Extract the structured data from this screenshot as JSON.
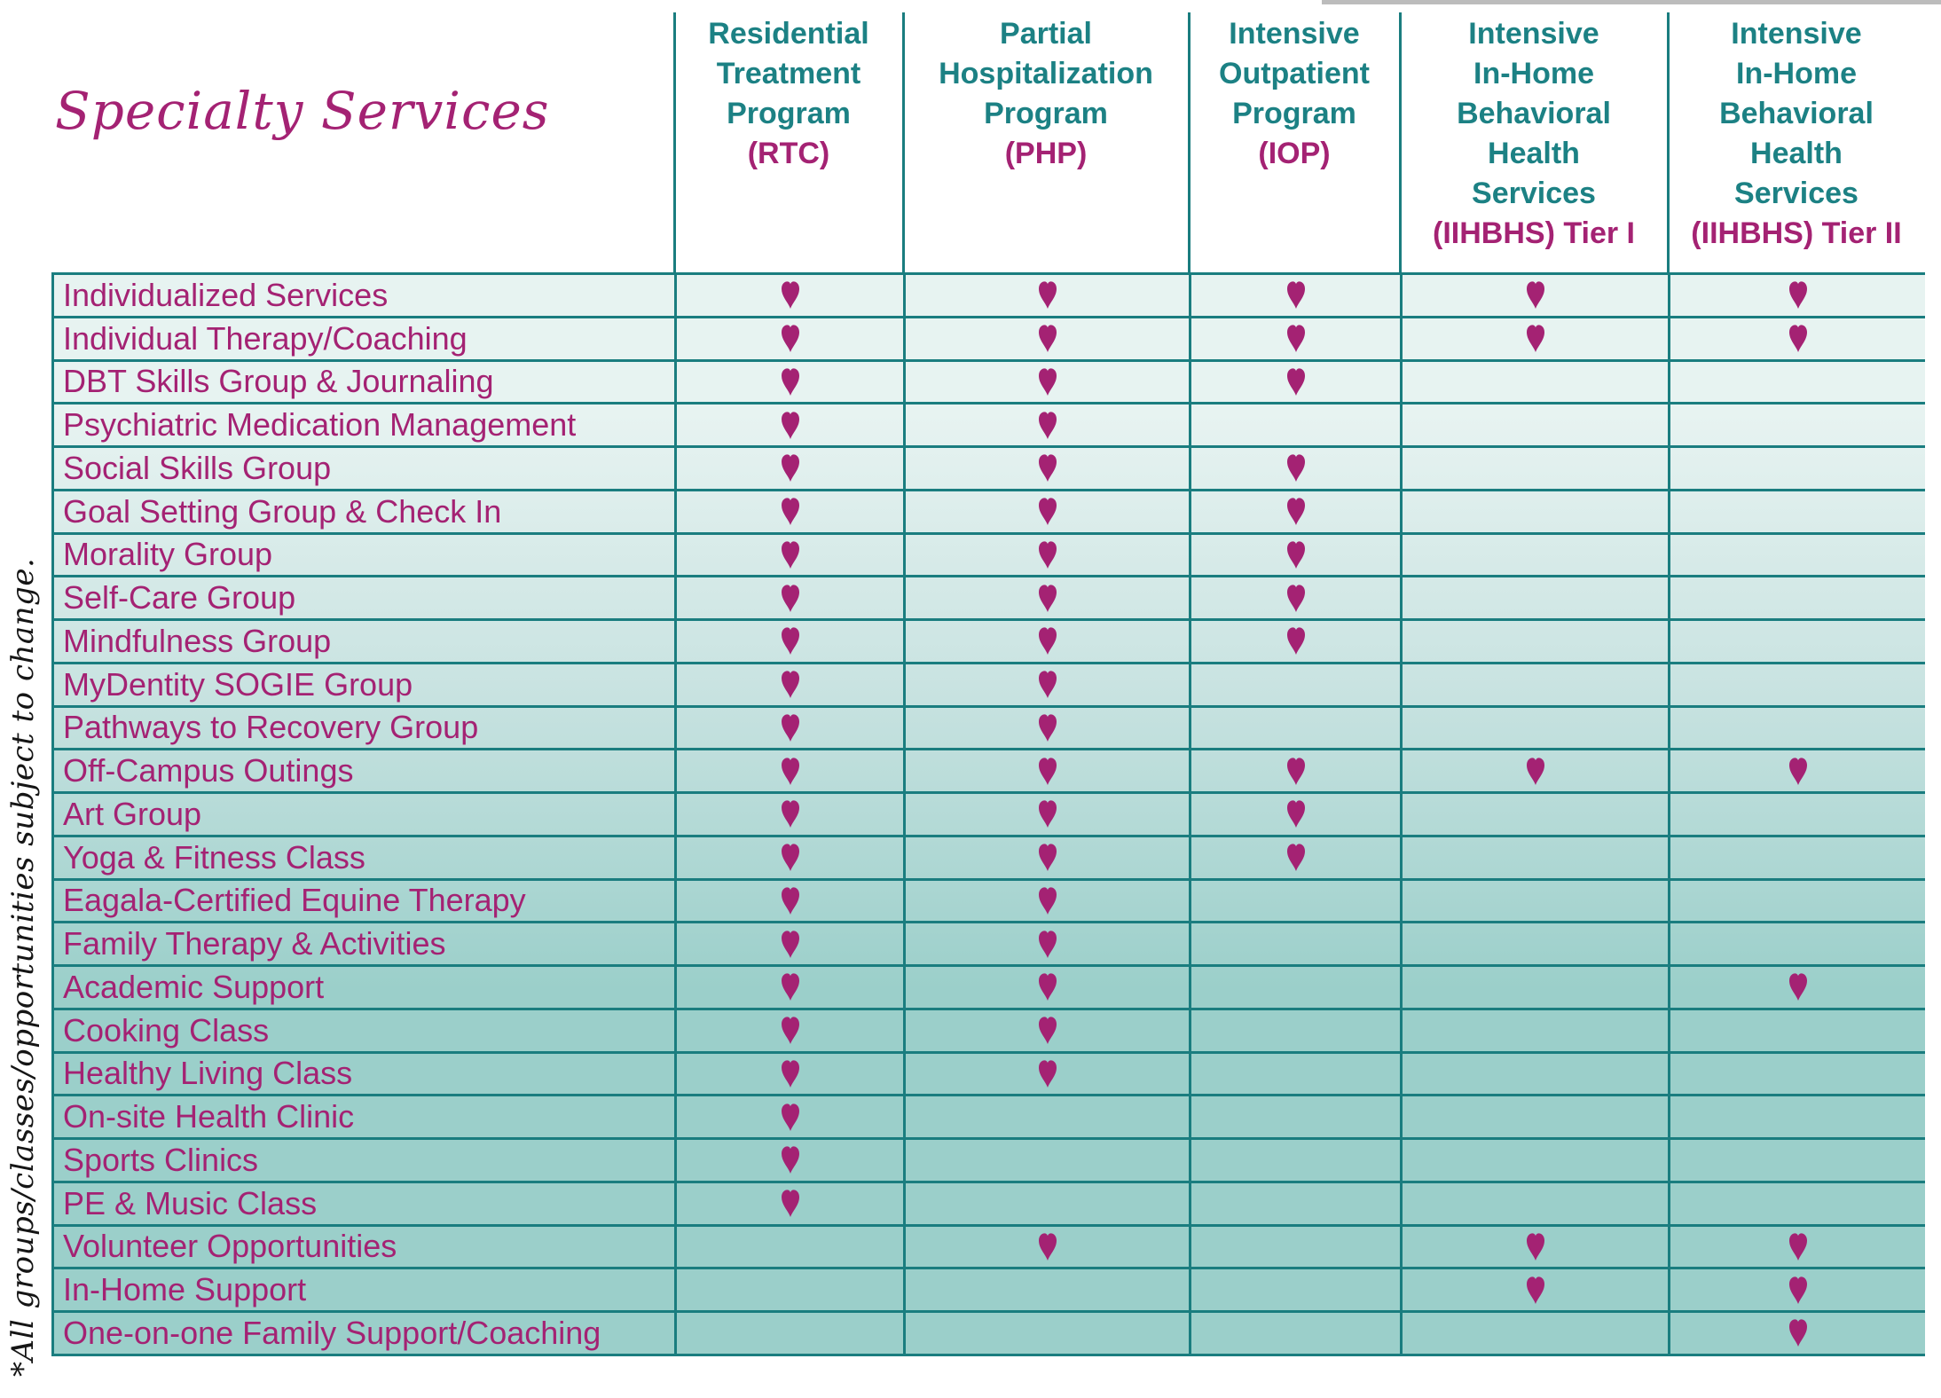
{
  "title": "Specialty Services",
  "footnote": "*All groups/classes/opportunities subject to change.",
  "colors": {
    "teal_text": "#1c8184",
    "grid_line": "#1a7d7f",
    "magenta": "#a42273",
    "row_gradient": [
      "#e7f3f1",
      "#c9e3e1",
      "#9bcfca"
    ]
  },
  "columns": [
    {
      "lines": [
        "Residential",
        "Treatment",
        "Program"
      ],
      "abbr": "(RTC)"
    },
    {
      "lines": [
        "Partial",
        "Hospitalization",
        "Program"
      ],
      "abbr": "(PHP)"
    },
    {
      "lines": [
        "Intensive",
        "Outpatient",
        "Program"
      ],
      "abbr": "(IOP)"
    },
    {
      "lines": [
        "Intensive",
        "In-Home",
        "Behavioral",
        "Health",
        "Services"
      ],
      "abbr": "(IIHBHS) Tier I"
    },
    {
      "lines": [
        "Intensive",
        "In-Home",
        "Behavioral",
        "Health",
        "Services"
      ],
      "abbr": "(IIHBHS) Tier II"
    }
  ],
  "heart_symbol": "heart",
  "services": [
    {
      "label": "Individualized Services",
      "availability": [
        1,
        1,
        1,
        1,
        1
      ]
    },
    {
      "label": "Individual Therapy/Coaching",
      "availability": [
        1,
        1,
        1,
        1,
        1
      ]
    },
    {
      "label": "DBT Skills Group & Journaling",
      "availability": [
        1,
        1,
        1,
        0,
        0
      ]
    },
    {
      "label": "Psychiatric Medication Management",
      "availability": [
        1,
        1,
        0,
        0,
        0
      ]
    },
    {
      "label": "Social Skills Group",
      "availability": [
        1,
        1,
        1,
        0,
        0
      ]
    },
    {
      "label": "Goal Setting Group & Check In",
      "availability": [
        1,
        1,
        1,
        0,
        0
      ]
    },
    {
      "label": "Morality Group",
      "availability": [
        1,
        1,
        1,
        0,
        0
      ]
    },
    {
      "label": "Self-Care Group",
      "availability": [
        1,
        1,
        1,
        0,
        0
      ]
    },
    {
      "label": "Mindfulness Group",
      "availability": [
        1,
        1,
        1,
        0,
        0
      ]
    },
    {
      "label": "MyDentity SOGIE Group",
      "availability": [
        1,
        1,
        0,
        0,
        0
      ]
    },
    {
      "label": "Pathways to Recovery Group",
      "availability": [
        1,
        1,
        0,
        0,
        0
      ]
    },
    {
      "label": "Off-Campus Outings",
      "availability": [
        1,
        1,
        1,
        1,
        1
      ]
    },
    {
      "label": "Art Group",
      "availability": [
        1,
        1,
        1,
        0,
        0
      ]
    },
    {
      "label": "Yoga & Fitness Class",
      "availability": [
        1,
        1,
        1,
        0,
        0
      ]
    },
    {
      "label": "Eagala-Certified Equine Therapy",
      "availability": [
        1,
        1,
        0,
        0,
        0
      ]
    },
    {
      "label": "Family Therapy & Activities",
      "availability": [
        1,
        1,
        0,
        0,
        0
      ]
    },
    {
      "label": "Academic Support",
      "availability": [
        1,
        1,
        0,
        0,
        1
      ]
    },
    {
      "label": "Cooking Class",
      "availability": [
        1,
        1,
        0,
        0,
        0
      ]
    },
    {
      "label": "Healthy Living Class",
      "availability": [
        1,
        1,
        0,
        0,
        0
      ]
    },
    {
      "label": "On-site Health Clinic",
      "availability": [
        1,
        0,
        0,
        0,
        0
      ]
    },
    {
      "label": "Sports Clinics",
      "availability": [
        1,
        0,
        0,
        0,
        0
      ]
    },
    {
      "label": "PE & Music Class",
      "availability": [
        1,
        0,
        0,
        0,
        0
      ]
    },
    {
      "label": "Volunteer Opportunities",
      "availability": [
        0,
        1,
        0,
        1,
        1
      ]
    },
    {
      "label": "In-Home Support",
      "availability": [
        0,
        0,
        0,
        1,
        1
      ]
    },
    {
      "label": "One-on-one Family Support/Coaching",
      "availability": [
        0,
        0,
        0,
        0,
        1
      ]
    }
  ]
}
